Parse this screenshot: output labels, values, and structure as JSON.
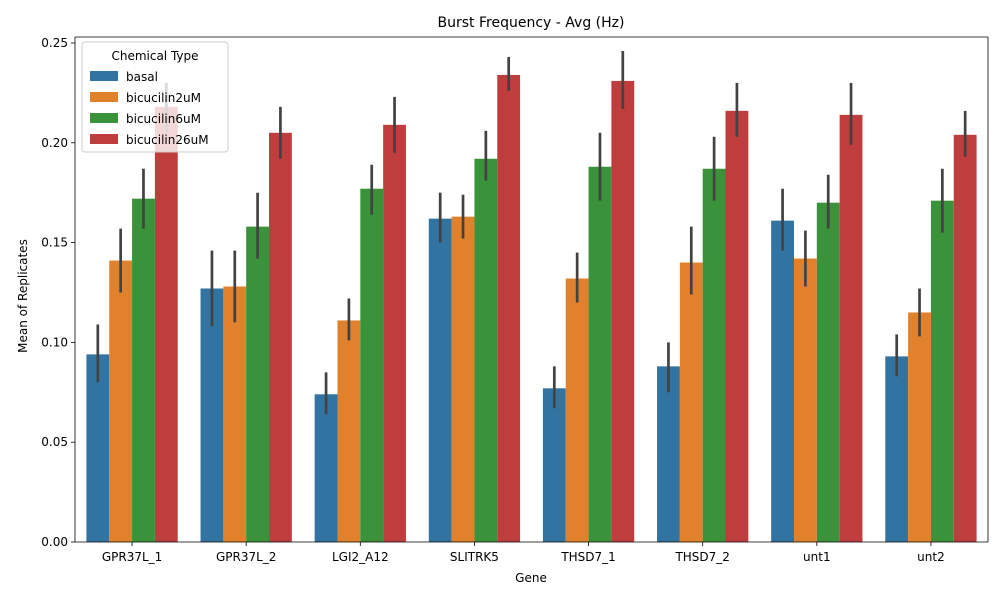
{
  "chart_data": {
    "type": "bar",
    "title": "Burst Frequency - Avg (Hz)",
    "xlabel": "Gene",
    "ylabel": "Mean of Replicates",
    "ylim": [
      0,
      0.253
    ],
    "yticks": [
      0.0,
      0.05,
      0.1,
      0.15,
      0.2,
      0.25
    ],
    "ytick_labels": [
      "0.00",
      "0.05",
      "0.10",
      "0.15",
      "0.20",
      "0.25"
    ],
    "categories": [
      "GPR37L_1",
      "GPR37L_2",
      "LGI2_A12",
      "SLITRK5",
      "THSD7_1",
      "THSD7_2",
      "unt1",
      "unt2"
    ],
    "legend": {
      "title": "Chemical Type",
      "placement": "top-left"
    },
    "series": [
      {
        "name": "basal",
        "color": "#3274a1",
        "values": [
          0.094,
          0.127,
          0.074,
          0.162,
          0.077,
          0.088,
          0.161,
          0.093
        ],
        "ci_low": [
          0.08,
          0.108,
          0.064,
          0.15,
          0.067,
          0.075,
          0.146,
          0.083
        ],
        "ci_high": [
          0.109,
          0.146,
          0.085,
          0.175,
          0.088,
          0.1,
          0.177,
          0.104
        ]
      },
      {
        "name": "bicucilin2uM",
        "color": "#e1812c",
        "values": [
          0.141,
          0.128,
          0.111,
          0.163,
          0.132,
          0.14,
          0.142,
          0.115
        ],
        "ci_low": [
          0.125,
          0.11,
          0.101,
          0.152,
          0.12,
          0.124,
          0.128,
          0.103
        ],
        "ci_high": [
          0.157,
          0.146,
          0.122,
          0.174,
          0.145,
          0.158,
          0.156,
          0.127
        ]
      },
      {
        "name": "bicucilin6uM",
        "color": "#3a923a",
        "values": [
          0.172,
          0.158,
          0.177,
          0.192,
          0.188,
          0.187,
          0.17,
          0.171
        ],
        "ci_low": [
          0.157,
          0.142,
          0.164,
          0.181,
          0.171,
          0.171,
          0.157,
          0.155
        ],
        "ci_high": [
          0.187,
          0.175,
          0.189,
          0.206,
          0.205,
          0.203,
          0.184,
          0.187
        ]
      },
      {
        "name": "bicucilin26uM",
        "color": "#c03d3e",
        "values": [
          0.218,
          0.205,
          0.209,
          0.234,
          0.231,
          0.216,
          0.214,
          0.204
        ],
        "ci_low": [
          0.205,
          0.192,
          0.195,
          0.226,
          0.217,
          0.203,
          0.199,
          0.193
        ],
        "ci_high": [
          0.23,
          0.218,
          0.223,
          0.243,
          0.246,
          0.23,
          0.23,
          0.216
        ]
      }
    ]
  }
}
